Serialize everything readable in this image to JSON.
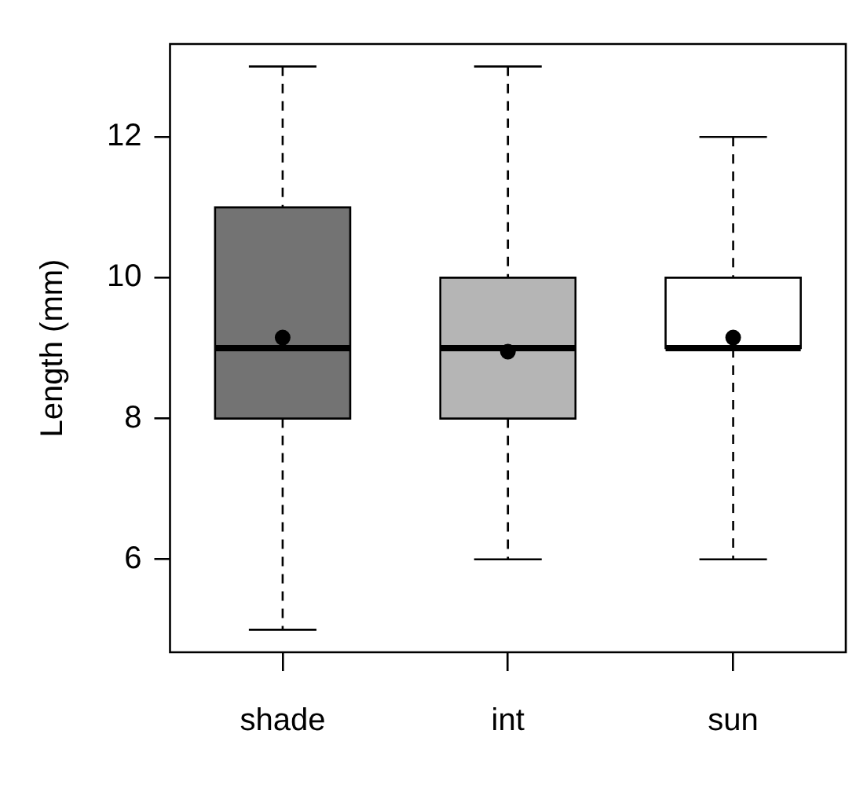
{
  "chart_data": {
    "type": "box",
    "ylabel": "Length (mm)",
    "categories": [
      "shade",
      "int",
      "sun"
    ],
    "colors": [
      "#737373",
      "#b5b5b5",
      "#ffffff"
    ],
    "boxes": [
      {
        "low": 5,
        "q1": 8,
        "median": 9,
        "q3": 11,
        "high": 13,
        "mean": 9.15
      },
      {
        "low": 6,
        "q1": 8,
        "median": 9,
        "q3": 10,
        "high": 13,
        "mean": 8.95
      },
      {
        "low": 6,
        "q1": 9,
        "median": 9,
        "q3": 10,
        "high": 12,
        "mean": 9.15
      }
    ],
    "ylim": [
      4.68,
      13.32
    ],
    "yticks": [
      6,
      8,
      10,
      12
    ],
    "grid": false,
    "legend": false
  }
}
